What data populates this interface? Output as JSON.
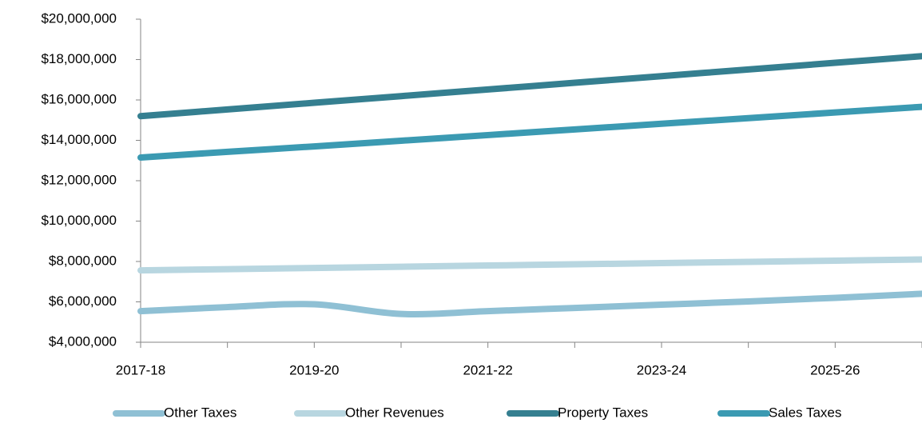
{
  "chart_data": {
    "type": "line",
    "categories": [
      "2017-18",
      null,
      "2019-20",
      null,
      "2021-22",
      null,
      "2023-24",
      null,
      "2025-26",
      null
    ],
    "series": [
      {
        "name": "Other Taxes",
        "color": "#8fc0d4",
        "values": [
          5540000,
          5740000,
          5880000,
          5400000,
          5540000,
          5700000,
          5860000,
          6020000,
          6200000,
          6400000
        ]
      },
      {
        "name": "Other Revenues",
        "color": "#b8d6e0",
        "values": [
          7560000,
          7620000,
          7680000,
          7740000,
          7800000,
          7860000,
          7920000,
          7980000,
          8040000,
          8100000
        ]
      },
      {
        "name": "Property Taxes",
        "color": "#357f90",
        "values": [
          15200000,
          15530000,
          15860000,
          16190000,
          16520000,
          16850000,
          17180000,
          17510000,
          17840000,
          18170000
        ]
      },
      {
        "name": "Sales Taxes",
        "color": "#3b9ab2",
        "values": [
          13150000,
          13430000,
          13700000,
          13980000,
          14260000,
          14540000,
          14820000,
          15100000,
          15380000,
          15660000
        ]
      }
    ],
    "ylim": [
      4000000,
      20000000
    ],
    "yticks": [
      {
        "value": 4000000,
        "label": "$4,000,000"
      },
      {
        "value": 6000000,
        "label": "$6,000,000"
      },
      {
        "value": 8000000,
        "label": "$8,000,000"
      },
      {
        "value": 10000000,
        "label": "$10,000,000"
      },
      {
        "value": 12000000,
        "label": "$12,000,000"
      },
      {
        "value": 14000000,
        "label": "$14,000,000"
      },
      {
        "value": 16000000,
        "label": "$16,000,000"
      },
      {
        "value": 18000000,
        "label": "$18,000,000"
      },
      {
        "value": 20000000,
        "label": "$20,000,000"
      }
    ],
    "legend": "bottom"
  }
}
